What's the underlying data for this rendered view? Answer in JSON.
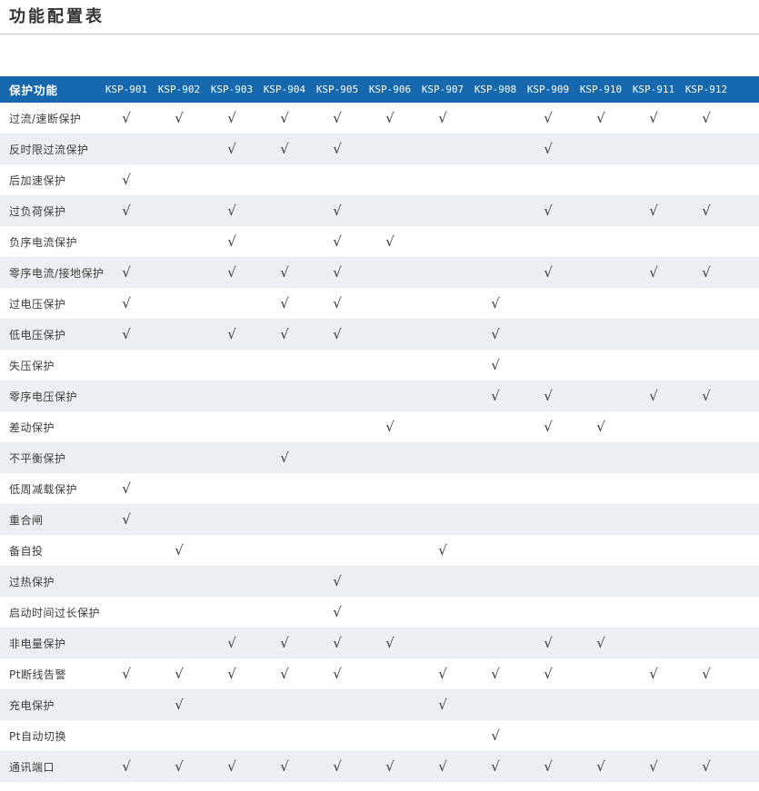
{
  "title": "功能配置表",
  "colors": {
    "header_bg": "#1568ad",
    "header_text": "#ffffff",
    "stripe_bg": "#edf0f3",
    "body_text": "#3d3d3d",
    "divider": "#c8c8c8"
  },
  "table": {
    "header_label": "保护功能",
    "check_glyph": "√",
    "columns": [
      "KSP-901",
      "KSP-902",
      "KSP-903",
      "KSP-904",
      "KSP-905",
      "KSP-906",
      "KSP-907",
      "KSP-908",
      "KSP-909",
      "KSP-910",
      "KSP-911",
      "KSP-912"
    ],
    "rows": [
      {
        "label": "过流/速断保护",
        "checks": [
          1,
          1,
          1,
          1,
          1,
          1,
          1,
          0,
          1,
          1,
          1,
          1
        ]
      },
      {
        "label": "反时限过流保护",
        "checks": [
          0,
          0,
          1,
          1,
          1,
          0,
          0,
          0,
          1,
          0,
          0,
          0
        ]
      },
      {
        "label": "后加速保护",
        "checks": [
          1,
          0,
          0,
          0,
          0,
          0,
          0,
          0,
          0,
          0,
          0,
          0
        ]
      },
      {
        "label": "过负荷保护",
        "checks": [
          1,
          0,
          1,
          0,
          1,
          0,
          0,
          0,
          1,
          0,
          1,
          1
        ]
      },
      {
        "label": "负序电流保护",
        "checks": [
          0,
          0,
          1,
          0,
          1,
          1,
          0,
          0,
          0,
          0,
          0,
          0
        ]
      },
      {
        "label": "零序电流/接地保护",
        "checks": [
          1,
          0,
          1,
          1,
          1,
          0,
          0,
          0,
          1,
          0,
          1,
          1
        ]
      },
      {
        "label": "过电压保护",
        "checks": [
          1,
          0,
          0,
          1,
          1,
          0,
          0,
          1,
          0,
          0,
          0,
          0
        ]
      },
      {
        "label": "低电压保护",
        "checks": [
          1,
          0,
          1,
          1,
          1,
          0,
          0,
          1,
          0,
          0,
          0,
          0
        ]
      },
      {
        "label": "失压保护",
        "checks": [
          0,
          0,
          0,
          0,
          0,
          0,
          0,
          1,
          0,
          0,
          0,
          0
        ]
      },
      {
        "label": "零序电压保护",
        "checks": [
          0,
          0,
          0,
          0,
          0,
          0,
          0,
          1,
          1,
          0,
          1,
          1
        ]
      },
      {
        "label": "差动保护",
        "checks": [
          0,
          0,
          0,
          0,
          0,
          1,
          0,
          0,
          1,
          1,
          0,
          0
        ]
      },
      {
        "label": "不平衡保护",
        "checks": [
          0,
          0,
          0,
          1,
          0,
          0,
          0,
          0,
          0,
          0,
          0,
          0
        ]
      },
      {
        "label": "低周减载保护",
        "checks": [
          1,
          0,
          0,
          0,
          0,
          0,
          0,
          0,
          0,
          0,
          0,
          0
        ]
      },
      {
        "label": "重合闸",
        "checks": [
          1,
          0,
          0,
          0,
          0,
          0,
          0,
          0,
          0,
          0,
          0,
          0
        ]
      },
      {
        "label": "备自投",
        "checks": [
          0,
          1,
          0,
          0,
          0,
          0,
          1,
          0,
          0,
          0,
          0,
          0
        ]
      },
      {
        "label": "过热保护",
        "checks": [
          0,
          0,
          0,
          0,
          1,
          0,
          0,
          0,
          0,
          0,
          0,
          0
        ]
      },
      {
        "label": "启动时间过长保护",
        "checks": [
          0,
          0,
          0,
          0,
          1,
          0,
          0,
          0,
          0,
          0,
          0,
          0
        ]
      },
      {
        "label": "非电量保护",
        "checks": [
          0,
          0,
          1,
          1,
          1,
          1,
          0,
          0,
          1,
          1,
          0,
          0
        ]
      },
      {
        "label": "Pt断线告警",
        "checks": [
          1,
          1,
          1,
          1,
          1,
          0,
          1,
          1,
          1,
          0,
          1,
          1
        ]
      },
      {
        "label": "充电保护",
        "checks": [
          0,
          1,
          0,
          0,
          0,
          0,
          1,
          0,
          0,
          0,
          0,
          0
        ]
      },
      {
        "label": "Pt自动切换",
        "checks": [
          0,
          0,
          0,
          0,
          0,
          0,
          0,
          1,
          0,
          0,
          0,
          0
        ]
      },
      {
        "label": "通讯端口",
        "checks": [
          1,
          1,
          1,
          1,
          1,
          1,
          1,
          1,
          1,
          1,
          1,
          1
        ]
      }
    ]
  }
}
